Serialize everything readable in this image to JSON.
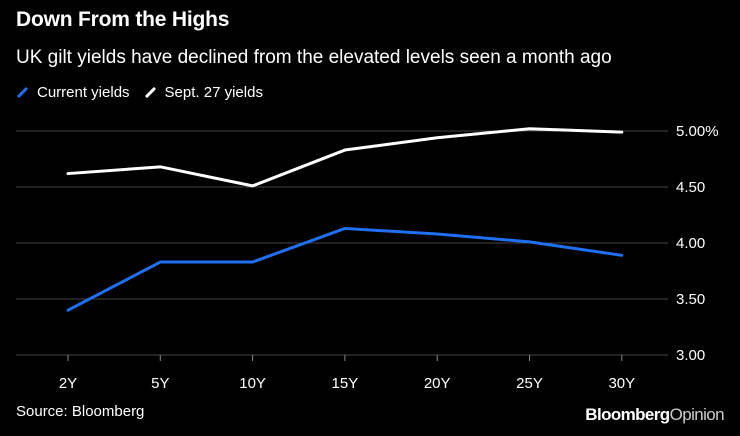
{
  "header": {
    "title": "Down From the Highs",
    "subtitle": "UK gilt yields have declined from the elevated levels seen a month ago"
  },
  "footer": {
    "source": "Source: Bloomberg",
    "brand_bold": "Bloomberg",
    "brand_regular": "Opinion"
  },
  "chart_data": {
    "type": "line",
    "title": "Down From the Highs",
    "subtitle": "UK gilt yields have declined from the elevated levels seen a month ago",
    "xlabel": "",
    "ylabel": "",
    "categories": [
      "2Y",
      "5Y",
      "10Y",
      "15Y",
      "20Y",
      "25Y",
      "30Y"
    ],
    "series": [
      {
        "name": "Current yields",
        "color": "#1f6ff2",
        "values": [
          3.4,
          3.83,
          3.83,
          4.13,
          4.08,
          4.01,
          3.89
        ]
      },
      {
        "name": "Sept. 27 yields",
        "color": "#ffffff",
        "values": [
          4.62,
          4.68,
          4.51,
          4.83,
          4.94,
          5.02,
          4.99
        ]
      }
    ],
    "y_ticks": [
      {
        "value": 3.0,
        "label": "3.00"
      },
      {
        "value": 3.5,
        "label": "3.50"
      },
      {
        "value": 4.0,
        "label": "4.00"
      },
      {
        "value": 4.5,
        "label": "4.50"
      },
      {
        "value": 5.0,
        "label": "5.00%"
      }
    ],
    "ylim": [
      3.0,
      5.0
    ],
    "grid": true,
    "legend_position": "top-left",
    "background": "#000000",
    "gridline_color": "#444444"
  }
}
